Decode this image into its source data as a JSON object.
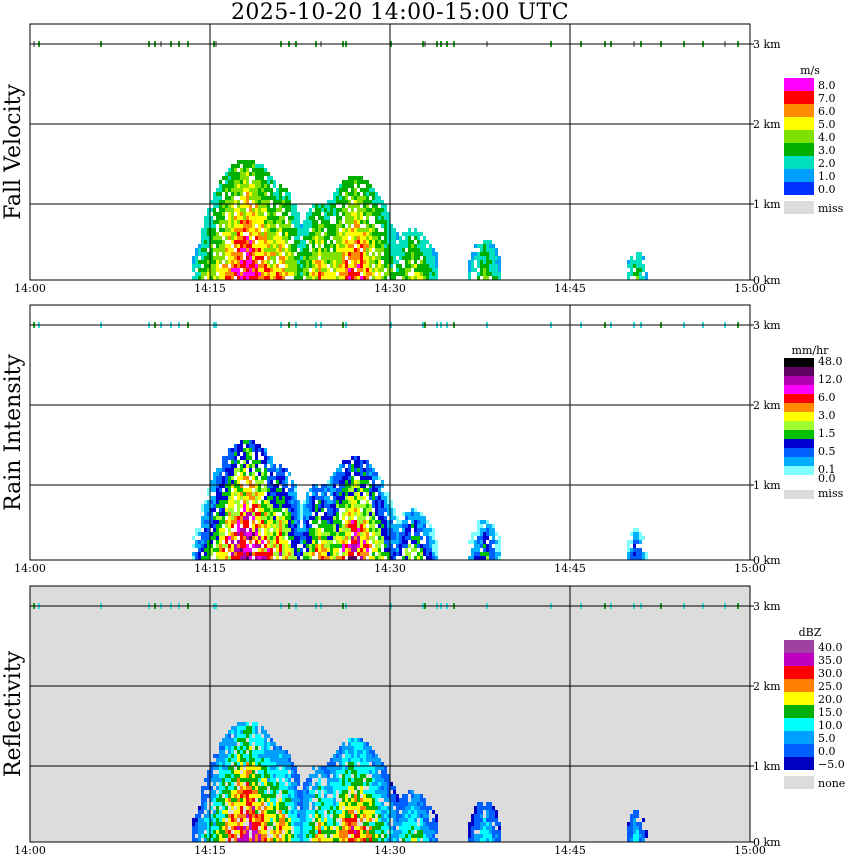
{
  "title": "2025-10-20   14:00-15:00 UTC",
  "x_ticks": [
    "14:00",
    "14:15",
    "14:30",
    "14:45",
    "15:00"
  ],
  "y_ticks": [
    "0 km",
    "1 km",
    "2 km",
    "3 km"
  ],
  "colors": {
    "missing": "#dcdcdc",
    "frame": "#000000",
    "marker_green": "#1aa11a",
    "marker_cyan": "#33e0e0"
  },
  "chart_data": [
    {
      "type": "heatmap",
      "ylabel": "Fall Velocity",
      "legend_unit": "m/s",
      "legend": [
        {
          "label": "8.0",
          "color": "#ff00ff"
        },
        {
          "label": "7.0",
          "color": "#ff0000"
        },
        {
          "label": "6.0",
          "color": "#ff8c00"
        },
        {
          "label": "5.0",
          "color": "#ffff00"
        },
        {
          "label": "4.0",
          "color": "#80e000"
        },
        {
          "label": "3.0",
          "color": "#00b000"
        },
        {
          "label": "2.0",
          "color": "#00e0c0"
        },
        {
          "label": "1.0",
          "color": "#00a0ff"
        },
        {
          "label": "0.0",
          "color": "#0030ff"
        },
        {
          "label": "miss",
          "color": "#dcdcdc"
        }
      ],
      "x_range": [
        "14:00",
        "15:00"
      ],
      "y_range_km": [
        0,
        3.2
      ],
      "background": "#ffffff"
    },
    {
      "type": "heatmap",
      "ylabel": "Rain Intensity",
      "legend_unit": "mm/hr",
      "legend": [
        {
          "label": "48.0",
          "color": "#000000"
        },
        {
          "label": "",
          "color": "#600060"
        },
        {
          "label": "12.0",
          "color": "#b000b0"
        },
        {
          "label": "",
          "color": "#ff00ff"
        },
        {
          "label": "6.0",
          "color": "#ff0000"
        },
        {
          "label": "",
          "color": "#ff8c00"
        },
        {
          "label": "3.0",
          "color": "#ffff00"
        },
        {
          "label": "",
          "color": "#a0ff30"
        },
        {
          "label": "1.5",
          "color": "#00c000"
        },
        {
          "label": "",
          "color": "#0000d0"
        },
        {
          "label": "0.5",
          "color": "#0060ff"
        },
        {
          "label": "",
          "color": "#00b0ff"
        },
        {
          "label": "0.1",
          "color": "#80ffff"
        },
        {
          "label": "0.0",
          "color": "#ffffff"
        },
        {
          "label": "miss",
          "color": "#dcdcdc"
        }
      ],
      "x_range": [
        "14:00",
        "15:00"
      ],
      "y_range_km": [
        0,
        3.2
      ],
      "background": "#ffffff"
    },
    {
      "type": "heatmap",
      "ylabel": "Reflectivity",
      "legend_unit": "dBZ",
      "legend": [
        {
          "label": "40.0",
          "color": "#a040a0"
        },
        {
          "label": "35.0",
          "color": "#c000c0"
        },
        {
          "label": "30.0",
          "color": "#ff0000"
        },
        {
          "label": "25.0",
          "color": "#ff8000"
        },
        {
          "label": "20.0",
          "color": "#ffff00"
        },
        {
          "label": "15.0",
          "color": "#00b000"
        },
        {
          "label": "10.0",
          "color": "#00ffff"
        },
        {
          "label": "5.0",
          "color": "#00a0ff"
        },
        {
          "label": "0.0",
          "color": "#0060ff"
        },
        {
          "label": "−5.0",
          "color": "#0000c0"
        },
        {
          "label": "none",
          "color": "#dcdcdc"
        }
      ],
      "x_range": [
        "14:00",
        "15:00"
      ],
      "y_range_km": [
        0,
        3.2
      ],
      "background": "#dcdcdc"
    }
  ]
}
